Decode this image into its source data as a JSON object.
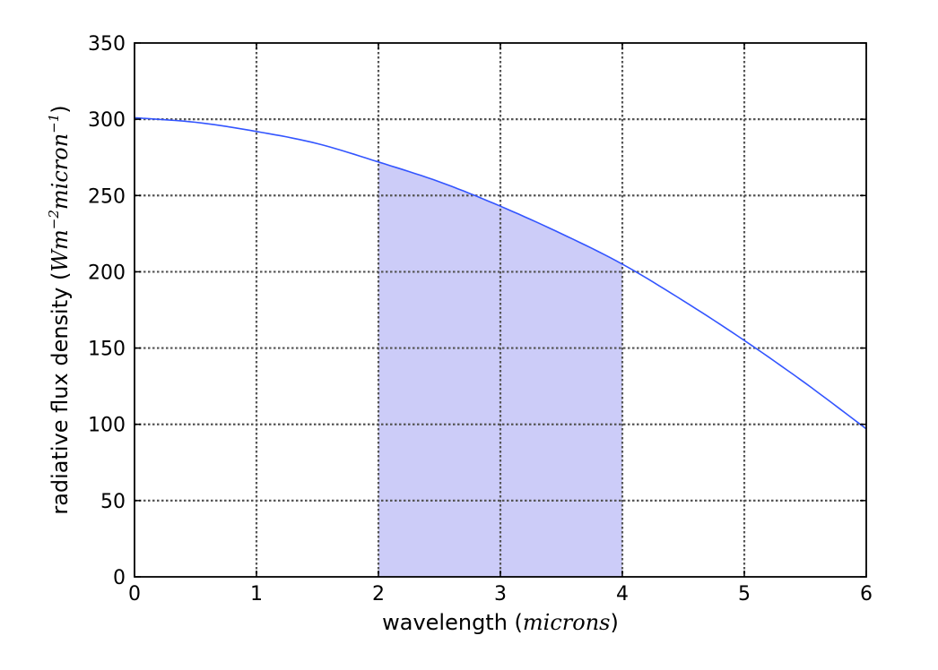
{
  "chart_data": {
    "type": "line",
    "title": "",
    "xlabel": {
      "text": "wavelength (",
      "math": "microns",
      "close": ")"
    },
    "ylabel": {
      "text": "radiative flux density (",
      "math_base": "Wm",
      "math_sup1": "−2",
      "math_mid": "micron",
      "math_sup2": "−1",
      "close": ")"
    },
    "xlim": [
      0,
      6
    ],
    "ylim": [
      0,
      350
    ],
    "xticks": [
      "0",
      "1",
      "2",
      "3",
      "4",
      "5",
      "6"
    ],
    "yticks": [
      "0",
      "50",
      "100",
      "150",
      "200",
      "250",
      "300",
      "350"
    ],
    "grid": true,
    "series": [
      {
        "line_color": "#3355ff",
        "x": [
          0,
          0.5,
          1,
          1.5,
          2,
          2.5,
          3,
          3.5,
          4,
          4.5,
          5,
          5.5,
          6
        ],
        "y": [
          301,
          298,
          292,
          284,
          272,
          259,
          243,
          225,
          205,
          181,
          155,
          127,
          97
        ]
      }
    ],
    "shaded_region": {
      "x_start": 2,
      "x_end": 4,
      "fill_color": "#ccccf8"
    }
  }
}
